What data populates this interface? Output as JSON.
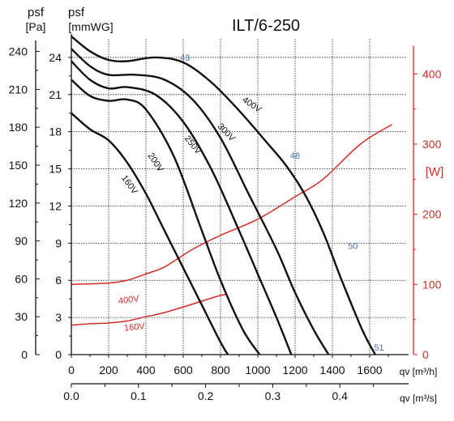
{
  "chart_data": {
    "type": "line",
    "title": "ILT/6-250",
    "x_axis_top": {
      "label": "qv [m³/h]",
      "range": [
        0,
        1800
      ],
      "ticks": [
        "0",
        "200",
        "400",
        "600",
        "800",
        "1000",
        "1200",
        "1400",
        "1600"
      ]
    },
    "x_axis_bottom": {
      "label": "qv [m³/s]",
      "range": [
        0,
        0.5
      ],
      "ticks": [
        "0.0",
        "0.1",
        "0.2",
        "0.3",
        "0.4"
      ]
    },
    "y_axis_pa": {
      "label_line1": "psf",
      "label_line2": "[Pa]",
      "range": [
        0,
        250
      ],
      "ticks": [
        "0",
        "30",
        "60",
        "90",
        "120",
        "150",
        "180",
        "210",
        "240"
      ]
    },
    "y_axis_mmwg": {
      "label_line1": "psf",
      "label_line2": "[mmWG]",
      "range": [
        0,
        25.5
      ],
      "ticks": [
        "0",
        "3",
        "6",
        "9",
        "12",
        "15",
        "18",
        "21",
        "24"
      ]
    },
    "y_axis_power": {
      "label": "[W]",
      "range": [
        0,
        450
      ],
      "ticks": [
        "0",
        "100",
        "200",
        "300",
        "400"
      ],
      "color": "#d62b27"
    },
    "grid": true,
    "pressure_series": [
      {
        "name": "400V",
        "points": [
          [
            0,
            25.7
          ],
          [
            100,
            24.5
          ],
          [
            200,
            23.8
          ],
          [
            300,
            23.7
          ],
          [
            450,
            24.0
          ],
          [
            600,
            23.6
          ],
          [
            750,
            22.0
          ],
          [
            900,
            19.7
          ],
          [
            1050,
            17.1
          ],
          [
            1150,
            15.3
          ],
          [
            1250,
            13.0
          ],
          [
            1350,
            9.9
          ],
          [
            1450,
            6.0
          ],
          [
            1560,
            2.0
          ],
          [
            1630,
            0
          ]
        ]
      },
      {
        "name": "300V",
        "points": [
          [
            0,
            24.7
          ],
          [
            100,
            23.3
          ],
          [
            200,
            22.6
          ],
          [
            350,
            22.6
          ],
          [
            500,
            22.2
          ],
          [
            650,
            20.6
          ],
          [
            800,
            17.5
          ],
          [
            950,
            13.0
          ],
          [
            1100,
            8.5
          ],
          [
            1200,
            5.0
          ],
          [
            1300,
            2.0
          ],
          [
            1380,
            0
          ]
        ]
      },
      {
        "name": "250V",
        "points": [
          [
            0,
            23.7
          ],
          [
            100,
            22.2
          ],
          [
            200,
            21.5
          ],
          [
            300,
            21.6
          ],
          [
            450,
            21.0
          ],
          [
            600,
            18.8
          ],
          [
            750,
            15.0
          ],
          [
            900,
            10.0
          ],
          [
            1000,
            6.5
          ],
          [
            1100,
            3.0
          ],
          [
            1180,
            0
          ]
        ]
      },
      {
        "name": "200V",
        "points": [
          [
            0,
            22.2
          ],
          [
            100,
            20.9
          ],
          [
            200,
            20.5
          ],
          [
            300,
            20.6
          ],
          [
            400,
            19.8
          ],
          [
            550,
            16.0
          ],
          [
            700,
            10.0
          ],
          [
            800,
            6.0
          ],
          [
            920,
            2.0
          ],
          [
            1010,
            0
          ]
        ]
      },
      {
        "name": "160V",
        "points": [
          [
            0,
            19.5
          ],
          [
            100,
            18.2
          ],
          [
            200,
            17.3
          ],
          [
            300,
            15.5
          ],
          [
            400,
            13.0
          ],
          [
            500,
            10.0
          ],
          [
            600,
            7.0
          ],
          [
            700,
            4.0
          ],
          [
            800,
            1.0
          ],
          [
            840,
            0
          ]
        ]
      }
    ],
    "power_series": [
      {
        "name": "400V",
        "color": "#d62b27",
        "points": [
          [
            0,
            100
          ],
          [
            200,
            102
          ],
          [
            300,
            106
          ],
          [
            400,
            115
          ],
          [
            500,
            125
          ],
          [
            650,
            150
          ],
          [
            800,
            170
          ],
          [
            1000,
            193
          ],
          [
            1200,
            225
          ],
          [
            1350,
            250
          ],
          [
            1550,
            300
          ],
          [
            1720,
            328
          ]
        ]
      },
      {
        "name": "160V",
        "color": "#d62b27",
        "points": [
          [
            0,
            42
          ],
          [
            100,
            44
          ],
          [
            200,
            45
          ],
          [
            300,
            48
          ],
          [
            400,
            54
          ],
          [
            500,
            60
          ],
          [
            650,
            72
          ],
          [
            780,
            83
          ],
          [
            830,
            86
          ]
        ]
      }
    ],
    "markers": [
      {
        "text": "43",
        "x": 610,
        "y": 24.0
      },
      {
        "text": "48",
        "x": 1200,
        "y": 16.1
      },
      {
        "text": "50",
        "x": 1510,
        "y": 8.8
      },
      {
        "text": "51",
        "x": 1650,
        "y": 0.6
      }
    ],
    "curve_labels": [
      {
        "text": "400V",
        "x": 960,
        "y": 20.0,
        "angle": 34
      },
      {
        "text": "300V",
        "x": 820,
        "y": 17.8,
        "angle": 47
      },
      {
        "text": "250V",
        "x": 640,
        "y": 16.8,
        "angle": 51
      },
      {
        "text": "200V",
        "x": 440,
        "y": 15.4,
        "angle": 56
      },
      {
        "text": "160V",
        "x": 300,
        "y": 13.6,
        "angle": 54
      },
      {
        "text": "400V",
        "x": 310,
        "y": 4.2,
        "angle": -8
      },
      {
        "text": "160V",
        "x": 340,
        "y": 2.0,
        "angle": -6
      }
    ],
    "colors": {
      "marker": "#4b6ea9",
      "power": "#d62b27",
      "curve": "#111111",
      "grid": "#222222"
    }
  }
}
